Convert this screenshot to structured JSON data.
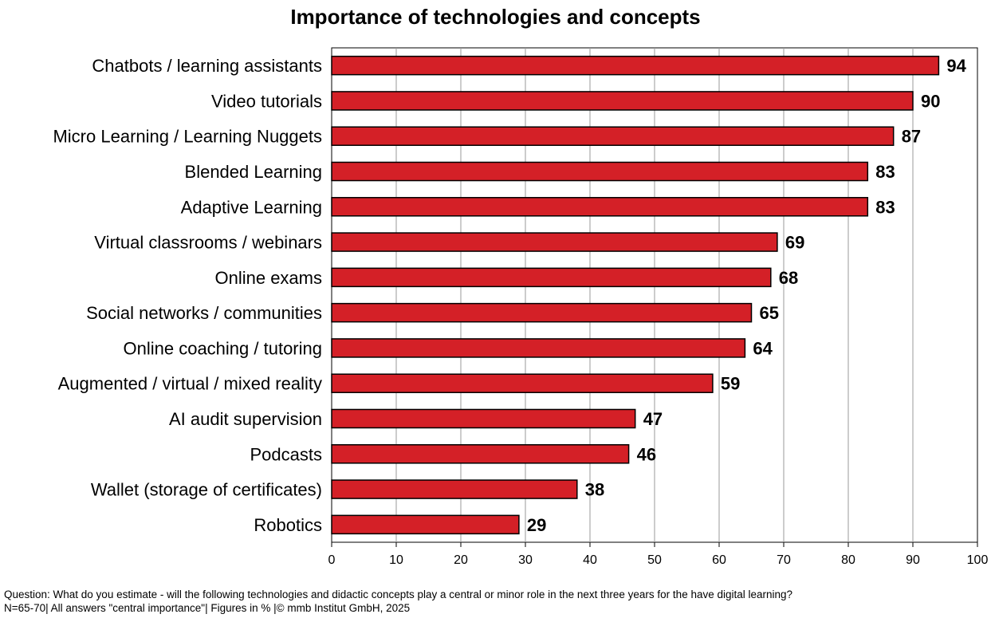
{
  "chart_data": {
    "type": "bar",
    "orientation": "horizontal",
    "title": "Importance of technologies and concepts",
    "categories": [
      "Chatbots / learning assistants",
      "Video tutorials",
      "Micro Learning / Learning Nuggets",
      "Blended Learning",
      "Adaptive Learning",
      "Virtual classrooms / webinars",
      "Online exams",
      "Social networks / communities",
      "Online coaching / tutoring",
      "Augmented / virtual / mixed reality",
      "AI audit supervision",
      "Podcasts",
      "Wallet (storage of certificates)",
      "Robotics"
    ],
    "values": [
      94,
      90,
      87,
      83,
      83,
      69,
      68,
      65,
      64,
      59,
      47,
      46,
      38,
      29
    ],
    "data_labels": [
      "94",
      "90",
      "87",
      "83",
      "83",
      "69",
      "68",
      "65",
      "64",
      "59",
      "47",
      "46",
      "38",
      "29"
    ],
    "xlim": [
      0,
      100
    ],
    "x_ticks": [
      0,
      10,
      20,
      30,
      40,
      50,
      60,
      70,
      80,
      90,
      100
    ],
    "x_tick_labels": [
      "0",
      "10",
      "20",
      "30",
      "40",
      "50",
      "60",
      "70",
      "80",
      "90",
      "100"
    ],
    "xlabel": "",
    "ylabel": "",
    "grid": "vertical",
    "bar_color": "#d42027"
  },
  "footnote": "Question: What do you estimate - will the following technologies and didactic concepts play a central or minor role in the next three years for the have digital learning? N=65-70| All answers \"central importance\"| Figures in % |© mmb Institut GmbH, 2025"
}
